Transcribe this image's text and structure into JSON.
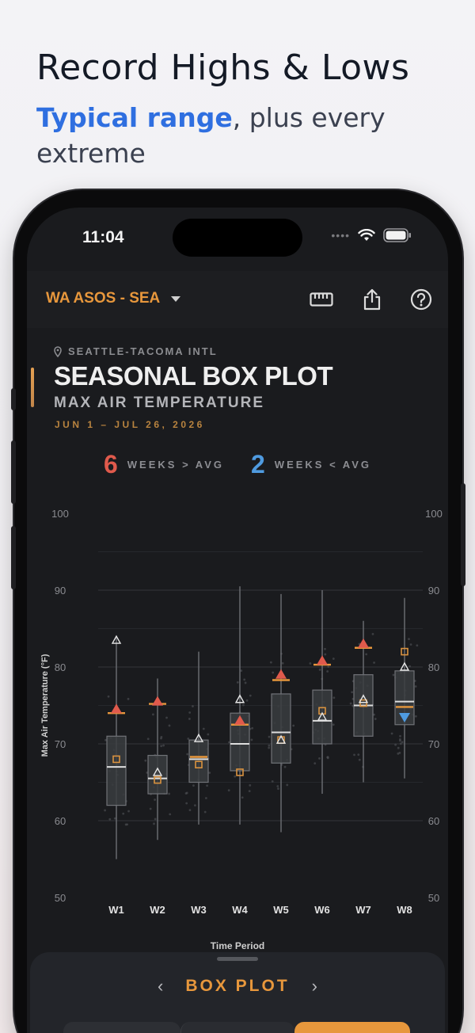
{
  "promo": {
    "title": "Record Highs & Lows",
    "subtitle_accent": "Typical range",
    "subtitle_rest": ", plus every extreme"
  },
  "status_bar": {
    "time": "11:04"
  },
  "header": {
    "station": "WA ASOS - SEA",
    "icons": [
      "ruler-icon",
      "share-icon",
      "help-icon"
    ]
  },
  "location": "SEATTLE-TACOMA INTL",
  "chart_title": "SEASONAL BOX PLOT",
  "chart_subtitle": "MAX AIR TEMPERATURE",
  "chart_dates": "JUN 1 – JUL 26, 2026",
  "summary": {
    "above_count": "6",
    "above_label": "WEEKS > AVG",
    "below_count": "2",
    "below_label": "WEEKS < AVG"
  },
  "bottom_sheet": {
    "title": "BOX PLOT",
    "prev": "‹",
    "next": "›"
  },
  "colors": {
    "accent_orange": "#e7973c",
    "above_red": "#e05a4c",
    "below_blue": "#4f9be0",
    "box_fill": "#3a3c40"
  },
  "chart_data": {
    "type": "box",
    "title": "SEASONAL BOX PLOT",
    "ylabel": "Max Air Temperature (°F)",
    "xlabel": "Time Period",
    "ylim": [
      50,
      100
    ],
    "yticks": [
      50,
      60,
      70,
      80,
      90,
      100
    ],
    "grid": true,
    "categories": [
      "W1",
      "W2",
      "W3",
      "W4",
      "W5",
      "W6",
      "W7",
      "W8"
    ],
    "boxes": [
      {
        "min": 55,
        "q1": 62,
        "median": 67,
        "q3": 71,
        "max": 84
      },
      {
        "min": 57.5,
        "q1": 63.5,
        "median": 65.5,
        "q3": 68.5,
        "max": 78.5
      },
      {
        "min": 59.5,
        "q1": 65,
        "median": 68,
        "q3": 70.5,
        "max": 82
      },
      {
        "min": 59.5,
        "q1": 66.5,
        "median": 70,
        "q3": 74,
        "max": 90.5
      },
      {
        "min": 58.5,
        "q1": 67.5,
        "median": 71.5,
        "q3": 76.5,
        "max": 89.5
      },
      {
        "min": 63.5,
        "q1": 70,
        "median": 73,
        "q3": 77,
        "max": 90
      },
      {
        "min": 65,
        "q1": 71,
        "median": 75,
        "q3": 79,
        "max": 86
      },
      {
        "min": 65.5,
        "q1": 72.5,
        "median": 75.5,
        "q3": 79.5,
        "max": 89
      }
    ],
    "normal": [
      74,
      75.2,
      68.3,
      72.5,
      78.3,
      80.3,
      82.5,
      74.8
    ],
    "current": [
      74.5,
      75.5,
      null,
      73,
      79,
      80.8,
      83,
      null
    ],
    "current_below": [
      null,
      null,
      null,
      null,
      null,
      null,
      null,
      73.5
    ],
    "mean_square": [
      68,
      65.3,
      67.3,
      66.3,
      70.5,
      74.3,
      75.3,
      82
    ],
    "open_triangle": [
      83.5,
      66.3,
      70.7,
      75.8,
      70.5,
      73.5,
      75.8,
      80
    ]
  }
}
